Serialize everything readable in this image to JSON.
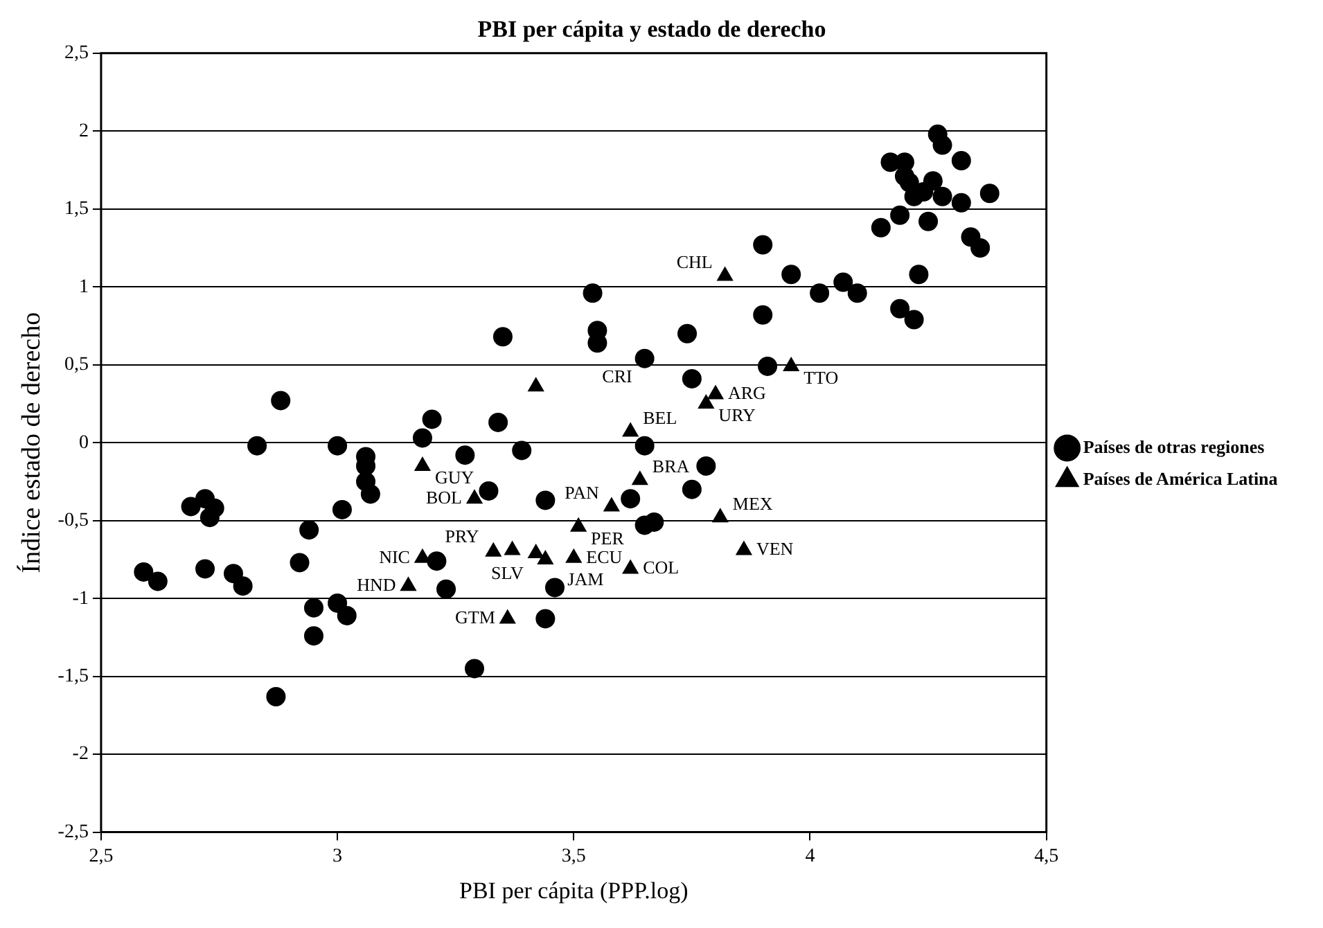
{
  "chart_data": {
    "type": "scatter",
    "title": "PBI per cápita y estado de derecho",
    "xlabel": "PBI per cápita (PPP.log)",
    "ylabel": "Índice estado de derecho",
    "xlim": [
      2.5,
      4.5
    ],
    "ylim": [
      -2.5,
      2.5
    ],
    "xticks": [
      {
        "value": 2.5,
        "label": "2,5"
      },
      3,
      {
        "value": 3.5,
        "label": "3,5"
      },
      4,
      {
        "value": 4.5,
        "label": "4,5"
      }
    ],
    "yticks": [
      {
        "value": -2.5,
        "label": "-2,5"
      },
      -2,
      {
        "value": -1.5,
        "label": "-1,5"
      },
      -1,
      {
        "value": -0.5,
        "label": "-0,5"
      },
      0,
      {
        "value": 0.5,
        "label": "0,5"
      },
      1,
      {
        "value": 1.5,
        "label": "1,5"
      },
      2,
      {
        "value": 2.5,
        "label": "2,5"
      }
    ],
    "grid": "y",
    "legend": "right",
    "series": [
      {
        "name": "Países de otras regiones",
        "color": "#000000",
        "marker": "circle",
        "x": [
          2.88,
          3.2,
          3.34,
          3.18,
          2.83,
          3.0,
          3.27,
          3.39,
          3.06,
          3.06,
          3.06,
          3.07,
          3.32,
          3.44,
          2.69,
          2.72,
          2.74,
          2.73,
          3.01,
          2.94,
          2.92,
          2.59,
          2.62,
          2.72,
          2.78,
          2.8,
          3.21,
          3.23,
          3.46,
          2.95,
          3.0,
          3.02,
          2.95,
          3.44,
          3.29,
          2.87,
          3.96,
          4.07,
          4.02,
          4.1,
          3.54,
          3.9,
          3.35,
          3.55,
          3.55,
          3.74,
          3.65,
          3.91,
          3.75,
          3.65,
          3.78,
          3.75,
          3.62,
          3.65,
          3.67,
          3.9,
          4.27,
          4.28,
          4.17,
          4.2,
          4.32,
          4.2,
          4.21,
          4.26,
          4.24,
          4.22,
          4.28,
          4.32,
          4.38,
          4.19,
          4.15,
          4.25,
          4.34,
          4.36,
          4.23,
          4.19,
          4.22
        ],
        "values": [
          0.27,
          0.15,
          0.13,
          0.03,
          -0.02,
          -0.02,
          -0.08,
          -0.05,
          -0.09,
          -0.15,
          -0.25,
          -0.33,
          -0.31,
          -0.37,
          -0.41,
          -0.36,
          -0.42,
          -0.48,
          -0.43,
          -0.56,
          -0.77,
          -0.83,
          -0.89,
          -0.81,
          -0.84,
          -0.92,
          -0.76,
          -0.94,
          -0.93,
          -1.06,
          -1.03,
          -1.11,
          -1.24,
          -1.13,
          -1.45,
          -1.63,
          1.08,
          1.03,
          0.96,
          0.96,
          0.96,
          0.82,
          0.68,
          0.72,
          0.64,
          0.7,
          0.54,
          0.49,
          0.41,
          -0.02,
          -0.15,
          -0.3,
          -0.36,
          -0.53,
          -0.51,
          1.27,
          1.98,
          1.91,
          1.8,
          1.8,
          1.81,
          1.71,
          1.67,
          1.68,
          1.61,
          1.58,
          1.58,
          1.54,
          1.6,
          1.46,
          1.38,
          1.42,
          1.32,
          1.25,
          1.08,
          0.86,
          0.79
        ]
      },
      {
        "name": "Países de América Latina",
        "color": "#000000",
        "marker": "triangle",
        "x": [
          3.82,
          3.96,
          3.8,
          3.78,
          3.42,
          3.62,
          3.18,
          3.64,
          3.29,
          3.58,
          3.51,
          3.81,
          3.86,
          3.18,
          3.33,
          3.37,
          3.42,
          3.44,
          3.5,
          3.62,
          3.15,
          3.36
        ],
        "values": [
          1.07,
          0.49,
          0.31,
          0.25,
          0.36,
          0.07,
          -0.15,
          -0.24,
          -0.36,
          -0.41,
          -0.54,
          -0.48,
          -0.69,
          -0.74,
          -0.7,
          -0.69,
          -0.71,
          -0.75,
          -0.74,
          -0.81,
          -0.92,
          -1.13
        ]
      }
    ],
    "annotations": [
      {
        "text": "CHL",
        "x": 3.82,
        "y": 1.07
      },
      {
        "text": "CRI",
        "x": 3.65,
        "y": 0.55
      },
      {
        "text": "TTO",
        "x": 3.96,
        "y": 0.49
      },
      {
        "text": "ARG",
        "x": 3.8,
        "y": 0.31
      },
      {
        "text": "URY",
        "x": 3.78,
        "y": 0.25
      },
      {
        "text": "BEL",
        "x": 3.62,
        "y": 0.07
      },
      {
        "text": "GUY",
        "x": 3.18,
        "y": -0.15
      },
      {
        "text": "BRA",
        "x": 3.64,
        "y": -0.24
      },
      {
        "text": "BOL",
        "x": 3.29,
        "y": -0.36
      },
      {
        "text": "PAN",
        "x": 3.58,
        "y": -0.41
      },
      {
        "text": "PER",
        "x": 3.51,
        "y": -0.54
      },
      {
        "text": "MEX",
        "x": 3.81,
        "y": -0.48
      },
      {
        "text": "VEN",
        "x": 3.86,
        "y": -0.69
      },
      {
        "text": "NIC",
        "x": 3.18,
        "y": -0.74
      },
      {
        "text": "PRY",
        "x": 3.37,
        "y": -0.69
      },
      {
        "text": "SLV",
        "x": 3.42,
        "y": -0.71
      },
      {
        "text": "JAM",
        "x": 3.44,
        "y": -0.75
      },
      {
        "text": "ECU",
        "x": 3.5,
        "y": -0.74
      },
      {
        "text": "COL",
        "x": 3.62,
        "y": -0.81
      },
      {
        "text": "HND",
        "x": 3.15,
        "y": -0.92
      },
      {
        "text": "GTM",
        "x": 3.36,
        "y": -1.13
      }
    ]
  }
}
